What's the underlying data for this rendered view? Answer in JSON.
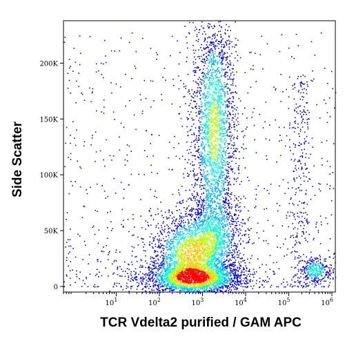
{
  "chart_data": {
    "type": "scatter",
    "title": "",
    "xlabel": "TCR Vdelta2 purified / GAM APC",
    "ylabel": "Side Scatter",
    "x_scale": "log",
    "xlim": [
      0.6,
      1200000
    ],
    "ylim": [
      -5000,
      238000
    ],
    "x_ticks": [
      {
        "value": 10,
        "base": "10",
        "exp": "1"
      },
      {
        "value": 100,
        "base": "10",
        "exp": "2"
      },
      {
        "value": 1000,
        "base": "10",
        "exp": "3"
      },
      {
        "value": 10000,
        "base": "10",
        "exp": "4"
      },
      {
        "value": 100000,
        "base": "10",
        "exp": "5"
      },
      {
        "value": 1000000,
        "base": "10",
        "exp": "6"
      }
    ],
    "y_ticks": [
      {
        "value": 0,
        "label": "0"
      },
      {
        "value": 50000,
        "label": "50K"
      },
      {
        "value": 100000,
        "label": "100K"
      },
      {
        "value": 150000,
        "label": "150K"
      },
      {
        "value": 200000,
        "label": "200K"
      }
    ],
    "grid": false,
    "legend": "none",
    "density_colormap": [
      "#0000ff",
      "#00b4ff",
      "#00ffd2",
      "#b4ff00",
      "#ffc800",
      "#ff0000"
    ],
    "populations": [
      {
        "x_center": 600,
        "y_center": 8000,
        "x_spread_decades": 0.45,
        "y_spread": 6000,
        "peak_density": 1.0
      },
      {
        "x_center": 500,
        "y_center": 30000,
        "x_spread_decades": 0.35,
        "y_spread": 14000,
        "peak_density": 0.75
      },
      {
        "x_center": 1800,
        "y_center": 45000,
        "x_spread_decades": 0.3,
        "y_spread": 15000,
        "peak_density": 0.35
      },
      {
        "x_center": 1800,
        "y_center": 140000,
        "x_spread_decades": 0.2,
        "y_spread": 45000,
        "peak_density": 0.6
      },
      {
        "x_center": 400000,
        "y_center": 15000,
        "x_spread_decades": 0.15,
        "y_spread": 5000,
        "peak_density": 0.45
      }
    ]
  }
}
